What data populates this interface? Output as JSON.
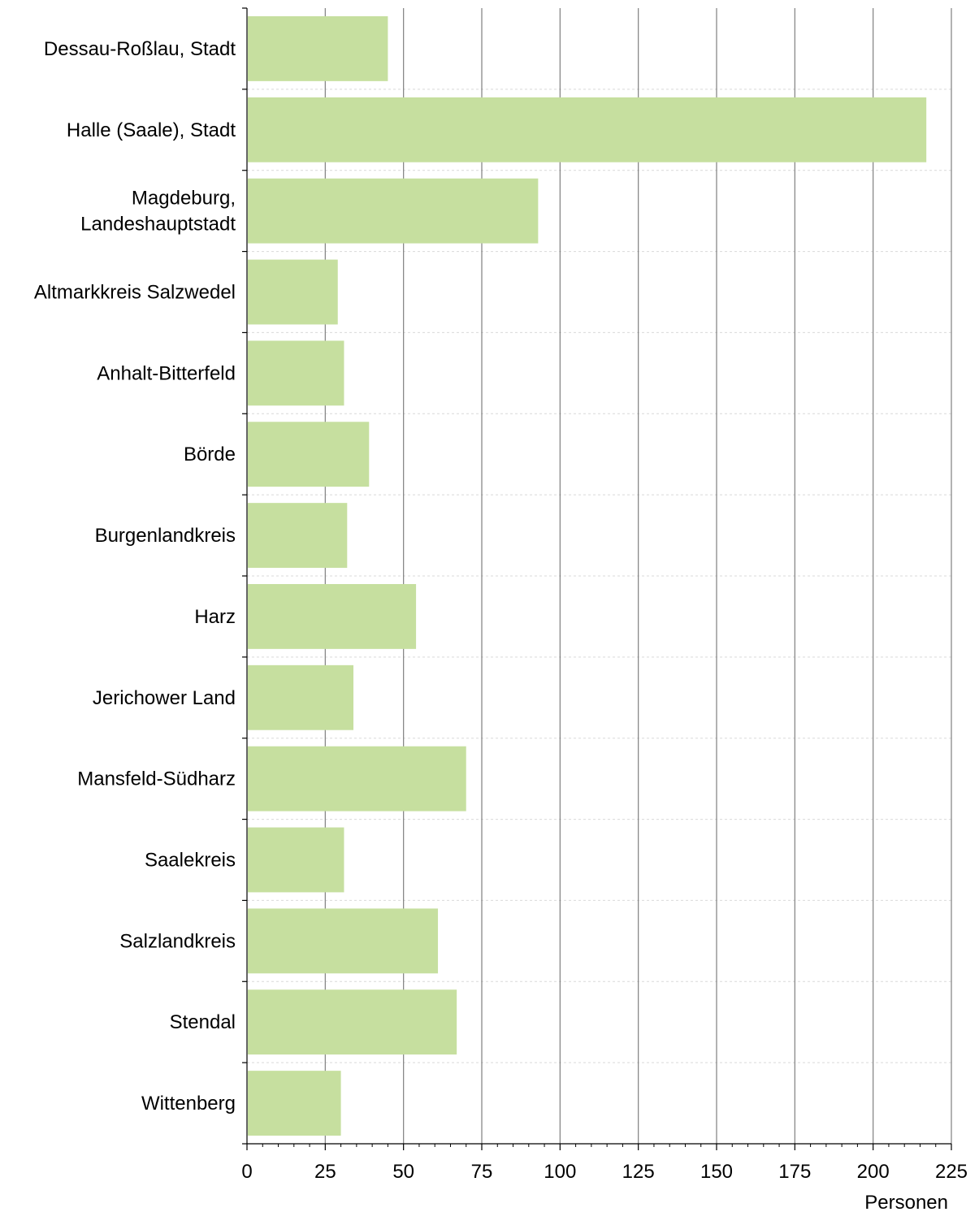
{
  "chart_data": {
    "type": "bar",
    "orientation": "horizontal",
    "categories": [
      [
        "Dessau-Roßlau, Stadt"
      ],
      [
        "Halle (Saale), Stadt"
      ],
      [
        "Magdeburg,",
        "Landeshauptstadt"
      ],
      [
        "Altmarkkreis Salzwedel"
      ],
      [
        "Anhalt-Bitterfeld"
      ],
      [
        "Börde"
      ],
      [
        "Burgenlandkreis"
      ],
      [
        "Harz"
      ],
      [
        "Jerichower Land"
      ],
      [
        "Mansfeld-Südharz"
      ],
      [
        "Saalekreis"
      ],
      [
        "Salzlandkreis"
      ],
      [
        "Stendal"
      ],
      [
        "Wittenberg"
      ]
    ],
    "values": [
      45,
      217,
      93,
      29,
      31,
      39,
      32,
      54,
      34,
      70,
      31,
      61,
      67,
      30
    ],
    "xlabel": "Personen",
    "xlim": [
      0,
      225
    ],
    "xticks": [
      "0",
      "25",
      "50",
      "75",
      "100",
      "125",
      "150",
      "175",
      "200",
      "225"
    ],
    "grid": "vertical",
    "bar_color": "#c6df9f",
    "grid_color": "#7f7f7f",
    "minor_grid_color": "#d9d9d9",
    "axis_color": "#000000"
  }
}
